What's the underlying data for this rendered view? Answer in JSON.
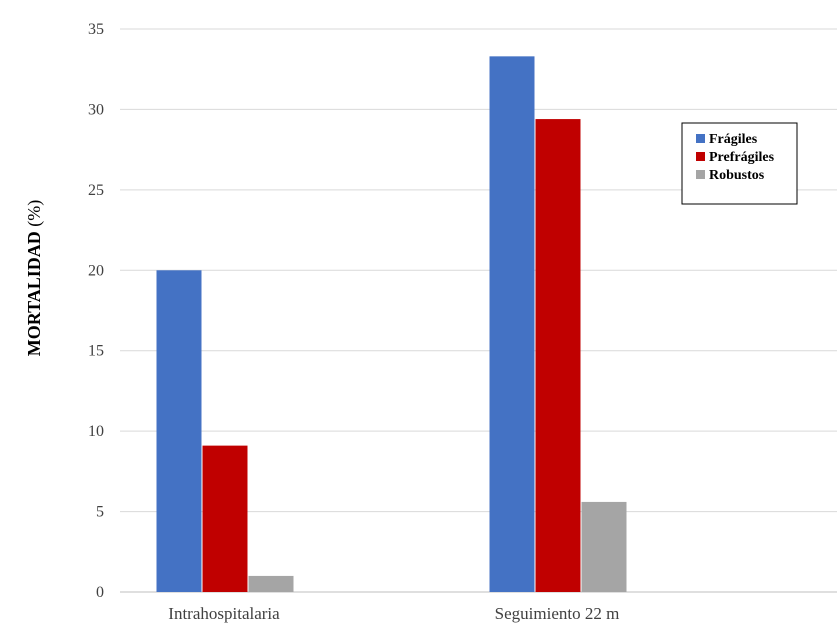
{
  "chart_data": {
    "type": "bar",
    "title": "",
    "xlabel": "",
    "ylabel": "MORTALIDAD",
    "ylabel_unit": "(%)",
    "categories": [
      "Intrahospitalaria",
      "Seguimiento 22 m"
    ],
    "series": [
      {
        "name": "Frágiles",
        "color": "#4472c4",
        "values": [
          20.0,
          33.3
        ]
      },
      {
        "name": "Prefrágiles",
        "color": "#c00000",
        "values": [
          9.1,
          29.4
        ]
      },
      {
        "name": "Robustos",
        "color": "#a5a5a5",
        "values": [
          1.0,
          5.6
        ]
      }
    ],
    "ylim": [
      0,
      35
    ],
    "yticks": [
      0,
      5,
      10,
      15,
      20,
      25,
      30,
      35
    ],
    "grid": true,
    "legend_position": "right"
  }
}
